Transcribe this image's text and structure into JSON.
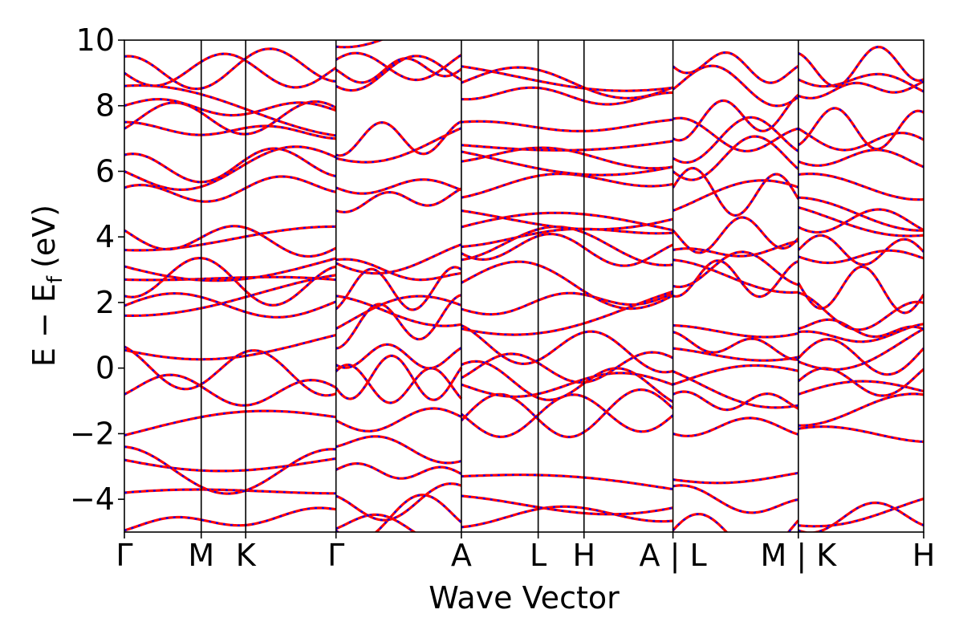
{
  "chart_data": {
    "type": "line",
    "xlabel": "Wave Vector",
    "ylabel": "E − E",
    "ylabel_subscript": "f",
    "ylabel_unit": "(eV)",
    "ylim": [
      -5,
      10
    ],
    "yticks": [
      -4,
      -2,
      0,
      2,
      4,
      6,
      8,
      10
    ],
    "ytick_labels": [
      "−4",
      "−2",
      "0",
      "2",
      "4",
      "6",
      "8",
      "10"
    ],
    "kpath_positions": [
      0,
      0.57,
      0.9,
      1.57,
      2.5,
      3.07,
      3.41,
      4.07,
      5.0,
      5.93
    ],
    "kpath_labels": [
      "Γ",
      "M",
      "K",
      "Γ",
      "A",
      "L",
      "H",
      "A | L",
      "M | K",
      "H"
    ],
    "series_colors": {
      "solid": "#ff0000",
      "dashed": "#0000ff"
    },
    "bands_approx_eV": {
      "segment_GMKG": [
        -4.95,
        -3.8,
        -2.8,
        -2.4,
        -2.05,
        -0.8,
        0.55,
        0.65,
        1.6,
        1.9,
        2.2,
        2.7,
        3.1,
        3.6,
        4.2,
        5.5,
        6.0,
        6.5,
        7.3,
        7.5,
        8.0,
        8.6,
        9.0,
        9.5
      ],
      "segment_GA": [
        -4.95,
        -4.9,
        -3.9,
        -3.1,
        -2.4,
        -1.6,
        -0.6,
        -0.1,
        0.1,
        0.6,
        1.2,
        1.8,
        2.2,
        3.2,
        3.3,
        4.8,
        5.5,
        6.4,
        6.5,
        8.6,
        9.1,
        9.4,
        9.8
      ],
      "segment_ALHA": [
        -4.85,
        -3.9,
        -3.3,
        -1.6,
        -1.4,
        -0.5,
        -0.3,
        0.1,
        1.2,
        1.3,
        1.8,
        2.6,
        3.3,
        3.5,
        3.7,
        4.3,
        4.8,
        5.2,
        6.3,
        6.6,
        6.8,
        7.5,
        8.2,
        8.7,
        9.2
      ],
      "segment_LM": [
        -4.95,
        -3.6,
        -3.4,
        -2.0,
        -0.8,
        -0.5,
        -0.1,
        0.6,
        1.1,
        1.3,
        2.2,
        2.5,
        3.3,
        3.6,
        4.2,
        4.8,
        5.5,
        6.0,
        6.4,
        7.0,
        7.6,
        8.5,
        9.2
      ],
      "segment_KH": [
        -4.95,
        -4.8,
        -1.85,
        -1.75,
        -0.8,
        -0.4,
        0.2,
        0.3,
        1.1,
        1.2,
        2.3,
        2.6,
        3.4,
        3.6,
        4.3,
        4.9,
        5.2,
        5.9,
        6.3,
        6.8,
        7.3,
        8.3,
        8.8,
        9.6
      ]
    }
  }
}
